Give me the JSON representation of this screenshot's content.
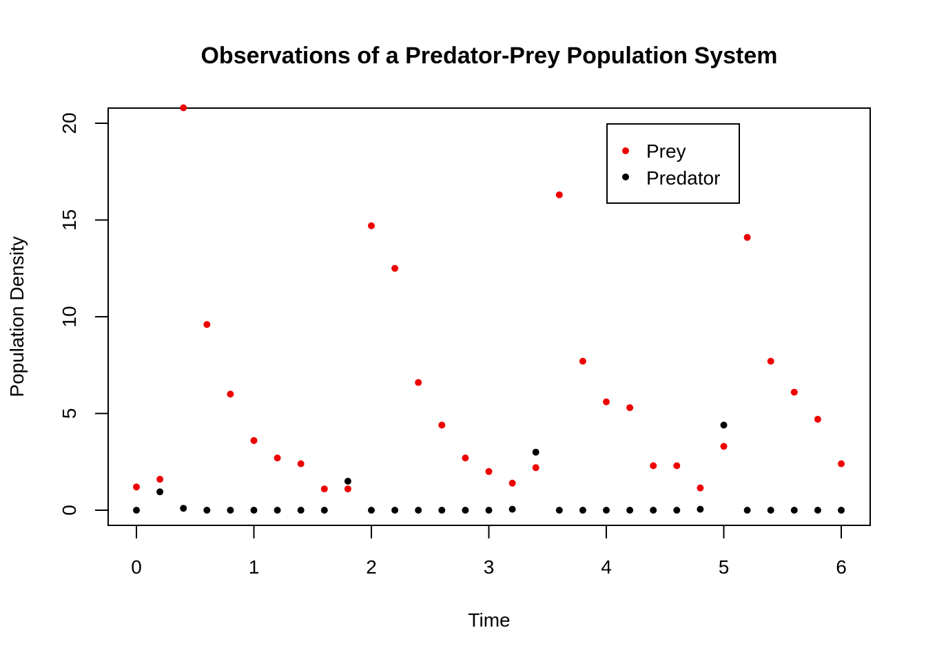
{
  "chart_data": {
    "type": "scatter",
    "title": "Observations of a Predator-Prey Population System",
    "xlabel": "Time",
    "ylabel": "Population Density",
    "xlim": [
      0,
      6
    ],
    "ylim": [
      0,
      20
    ],
    "x_ticks": [
      0,
      1,
      2,
      3,
      4,
      5,
      6
    ],
    "y_ticks": [
      0,
      5,
      10,
      15,
      20
    ],
    "grid": false,
    "legend_position": "top-right",
    "x": [
      0,
      0.2,
      0.4,
      0.6,
      0.8,
      1.0,
      1.2,
      1.4,
      1.6,
      1.8,
      2.0,
      2.2,
      2.4,
      2.6,
      2.8,
      3.0,
      3.2,
      3.4,
      3.6,
      3.8,
      4.0,
      4.2,
      4.4,
      4.6,
      4.8,
      5.0,
      5.2,
      5.4,
      5.6,
      5.8,
      6.0
    ],
    "series": [
      {
        "name": "Prey",
        "color": "#ee0000",
        "values": [
          1.2,
          1.6,
          20.8,
          9.6,
          6.0,
          3.6,
          2.7,
          2.4,
          1.1,
          1.1,
          14.7,
          12.5,
          6.6,
          4.4,
          2.7,
          2.0,
          1.4,
          2.2,
          16.3,
          7.7,
          5.6,
          5.3,
          2.3,
          2.3,
          1.15,
          3.3,
          14.1,
          7.7,
          6.1,
          4.7,
          2.4
        ]
      },
      {
        "name": "Predator",
        "color": "#000000",
        "values": [
          0,
          0.95,
          0.1,
          0,
          0,
          0,
          0,
          0,
          0,
          1.5,
          0,
          0,
          0,
          0,
          0,
          0,
          0.05,
          3.0,
          0,
          0,
          0,
          0,
          0,
          0,
          0.05,
          4.4,
          0,
          0,
          0,
          0,
          0
        ]
      }
    ]
  }
}
